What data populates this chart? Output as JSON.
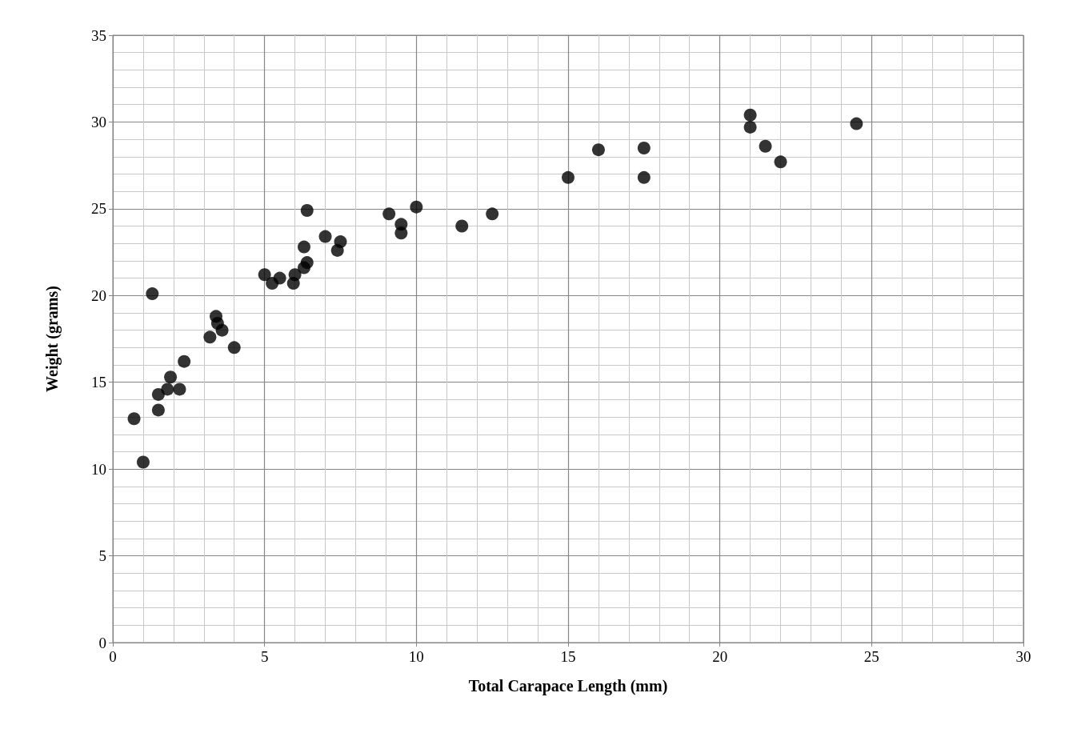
{
  "chart_data": {
    "type": "scatter",
    "xlabel": "Total Carapace Length (mm)",
    "ylabel": "Weight (grams)",
    "x": [
      0.7,
      1.0,
      1.3,
      1.5,
      1.5,
      1.8,
      1.9,
      2.2,
      2.35,
      3.2,
      3.4,
      3.45,
      3.6,
      4.0,
      5.0,
      5.25,
      5.5,
      5.95,
      6.0,
      6.3,
      6.3,
      6.4,
      6.4,
      7.0,
      7.4,
      7.5,
      9.1,
      9.5,
      9.5,
      10.0,
      11.5,
      12.5,
      15.0,
      16.0,
      17.5,
      17.5,
      21.0,
      21.0,
      21.5,
      22.0,
      24.5
    ],
    "values": [
      12.9,
      10.4,
      20.1,
      14.3,
      13.4,
      14.6,
      15.3,
      14.6,
      16.2,
      17.6,
      18.8,
      18.4,
      18.0,
      17.0,
      21.2,
      20.7,
      21.0,
      20.7,
      21.2,
      22.8,
      21.6,
      21.9,
      24.9,
      23.4,
      22.6,
      23.1,
      24.7,
      24.1,
      23.6,
      25.1,
      24.0,
      24.7,
      26.8,
      28.4,
      28.5,
      26.8,
      30.4,
      29.7,
      28.6,
      27.7,
      29.9
    ],
    "color": "#000000",
    "marker": "circle",
    "grid": true,
    "xlim": [
      0,
      30
    ],
    "xticks": [
      0,
      5,
      10,
      15,
      20,
      25,
      30
    ],
    "ylim": [
      0,
      35
    ],
    "yticks": [
      0,
      5,
      10,
      15,
      20,
      25,
      30,
      35
    ]
  }
}
